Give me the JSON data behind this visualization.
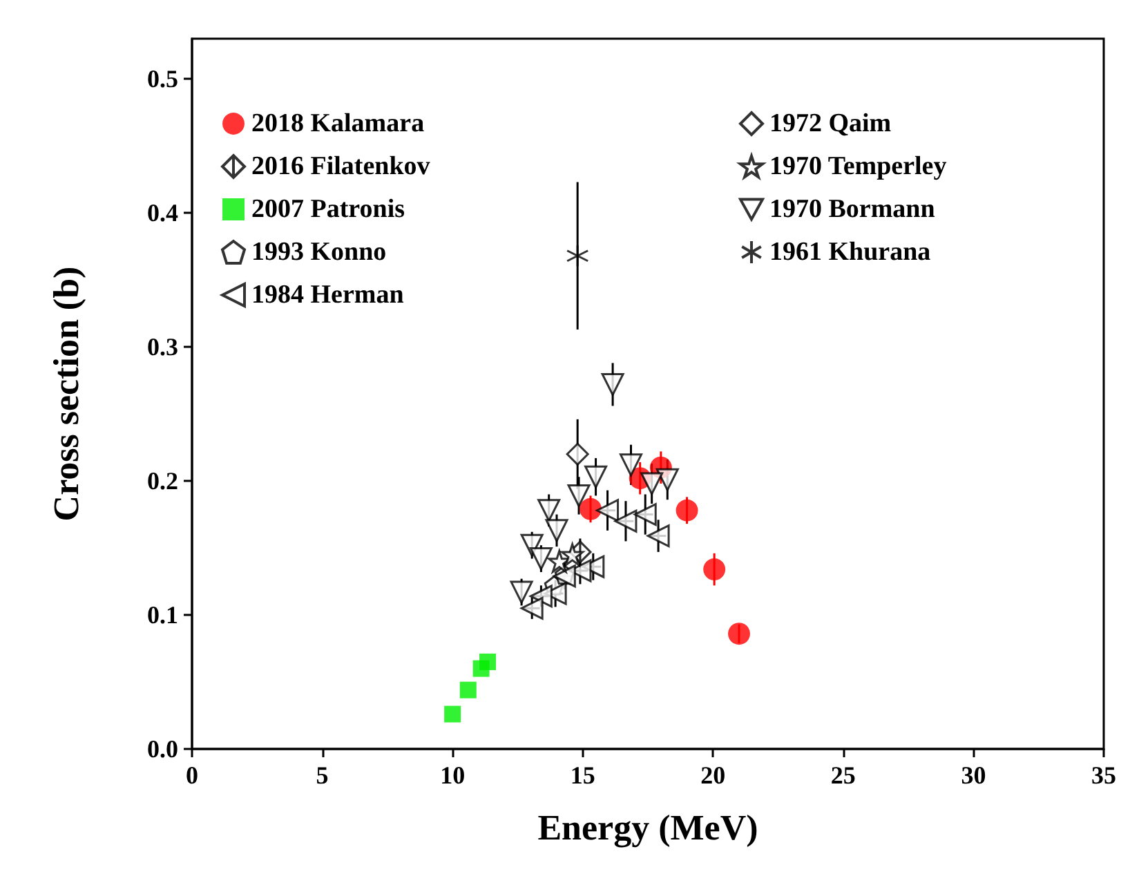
{
  "chart_data": {
    "type": "scatter",
    "xlabel": "Energy (MeV)",
    "ylabel": "Cross section (b)",
    "xlim": [
      0,
      35
    ],
    "xticks": [
      0,
      5,
      10,
      15,
      20,
      25,
      30,
      35
    ],
    "ylim": [
      0,
      0.53
    ],
    "yticks": [
      {
        "value": 0,
        "label": "0.0"
      },
      {
        "value": 0.1,
        "label": "0.1"
      },
      {
        "value": 0.2,
        "label": "0.2"
      },
      {
        "value": 0.3,
        "label": "0.3"
      },
      {
        "value": 0.4,
        "label": "0.4"
      },
      {
        "value": 0.5,
        "label": "0.5"
      }
    ],
    "grid": false,
    "legend": "top",
    "series": [
      {
        "name": "2018 Kalamara",
        "color": "#ff0000",
        "marker": "circle",
        "x": [
          15.3,
          17.2,
          18.0,
          19.0,
          20.05,
          21.0
        ],
        "values": [
          0.179,
          0.202,
          0.21,
          0.178,
          0.134,
          0.086
        ],
        "errors": [
          0.01,
          0.012,
          0.012,
          0.01,
          0.012,
          0.007
        ]
      },
      {
        "name": "2016 Filatenkov",
        "color": "#000000",
        "x": [
          14.9
        ],
        "values": [
          0.147
        ],
        "errors": [
          0.01
        ]
      },
      {
        "name": "2007 Patronis",
        "color": "#00ee00",
        "marker": "square",
        "x": [
          10.0,
          10.6,
          11.1,
          11.35
        ],
        "values": [
          0.026,
          0.044,
          0.06,
          0.065
        ]
      },
      {
        "name": "1993 Konno",
        "color": "#000000",
        "x": [
          13.9,
          14.3
        ],
        "values": [
          0.122,
          0.13
        ]
      },
      {
        "name": "1984 Herman",
        "color": "#000000",
        "marker": "triangle-left",
        "x": [
          15.95,
          16.65,
          17.4,
          17.9,
          15.4,
          14.9,
          14.3,
          13.95,
          13.4,
          13.05
        ],
        "values": [
          0.178,
          0.17,
          0.175,
          0.159,
          0.136,
          0.133,
          0.129,
          0.116,
          0.114,
          0.105
        ],
        "errors": [
          0.015,
          0.015,
          0.015,
          0.012,
          0.01,
          0.01,
          0.01,
          0.01,
          0.008,
          0.008
        ],
        "xerrors": [
          0.3,
          0.3,
          0.3,
          0.3,
          0.3,
          0.3,
          0.3,
          0.3,
          0.3,
          0.3
        ]
      },
      {
        "name": "1972 Qaim",
        "color": "#000000",
        "marker": "diamond",
        "x": [
          14.8
        ],
        "values": [
          0.22
        ],
        "errors": [
          0.026
        ]
      },
      {
        "name": "1970 Temperley",
        "color": "#000000",
        "marker": "star",
        "x": [
          14.1,
          14.6
        ],
        "values": [
          0.14,
          0.145
        ]
      },
      {
        "name": "1970 Bormann",
        "color": "#000000",
        "marker": "triangle-down",
        "x": [
          16.15,
          15.5,
          14.85,
          13.7,
          14.0,
          13.05,
          13.4,
          12.65,
          16.85,
          18.25,
          17.65
        ],
        "values": [
          0.272,
          0.203,
          0.189,
          0.178,
          0.163,
          0.152,
          0.142,
          0.117,
          0.212,
          0.201,
          0.198
        ],
        "errors": [
          0.016,
          0.014,
          0.014,
          0.012,
          0.012,
          0.01,
          0.01,
          0.01,
          0.015,
          0.015,
          0.015
        ]
      },
      {
        "name": "1961 Khurana",
        "color": "#000000",
        "marker": "cross",
        "x": [
          14.8
        ],
        "values": [
          0.368
        ],
        "errors": [
          0.055
        ]
      }
    ]
  }
}
